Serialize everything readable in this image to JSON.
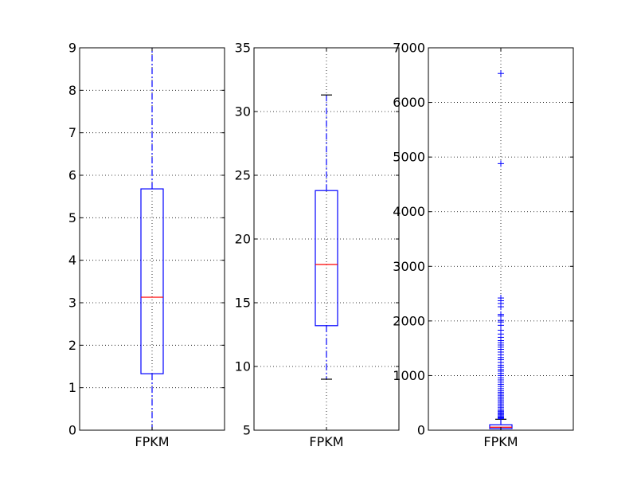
{
  "colors": {
    "box": "#0000ff",
    "median": "#ff0000",
    "whisker": "#0000ff",
    "cap": "#000000",
    "flier": "#0000ff",
    "grid": "#000000",
    "frame": "#000000",
    "background": "#ffffff"
  },
  "chart_data": [
    {
      "type": "box",
      "categories": [
        "FPKM"
      ],
      "ylim": [
        0,
        9
      ],
      "yticks": [
        "0",
        "1",
        "2",
        "3",
        "4",
        "5",
        "6",
        "7",
        "8",
        "9"
      ],
      "grid": true,
      "box": {
        "q1": 1.33,
        "median": 3.13,
        "q3": 5.68,
        "whisker_low": 0,
        "whisker_high": 9,
        "whisker_high_clipped": true
      },
      "fliers": []
    },
    {
      "type": "box",
      "categories": [
        "FPKM"
      ],
      "ylim": [
        5,
        35
      ],
      "yticks": [
        "5",
        "10",
        "15",
        "20",
        "25",
        "30",
        "35"
      ],
      "grid": true,
      "box": {
        "q1": 13.2,
        "median": 18.0,
        "q3": 23.8,
        "whisker_low": 9.0,
        "whisker_high": 31.3,
        "whisker_high_clipped": false
      },
      "fliers": []
    },
    {
      "type": "box",
      "categories": [
        "FPKM"
      ],
      "ylim": [
        0,
        7000
      ],
      "yticks": [
        "0",
        "1000",
        "2000",
        "3000",
        "4000",
        "5000",
        "6000",
        "7000"
      ],
      "grid": true,
      "box": {
        "q1": 30,
        "median": 55,
        "q3": 100,
        "whisker_low": 0,
        "whisker_high": 200,
        "whisker_high_clipped": false
      },
      "fliers": [
        6530,
        4880,
        2420,
        2370,
        2320,
        2260,
        2120,
        2090,
        2010,
        1980,
        1920,
        1830,
        1760,
        1700,
        1640,
        1600,
        1560,
        1520,
        1480,
        1430,
        1380,
        1330,
        1290,
        1240,
        1190,
        1150,
        1110,
        1080,
        1040,
        1000,
        960,
        920,
        880,
        840,
        800,
        760,
        720,
        690,
        660,
        630,
        600,
        570,
        540,
        510,
        480,
        450,
        420,
        390,
        360,
        340,
        320,
        300,
        280,
        260,
        240,
        225,
        210
      ]
    }
  ]
}
